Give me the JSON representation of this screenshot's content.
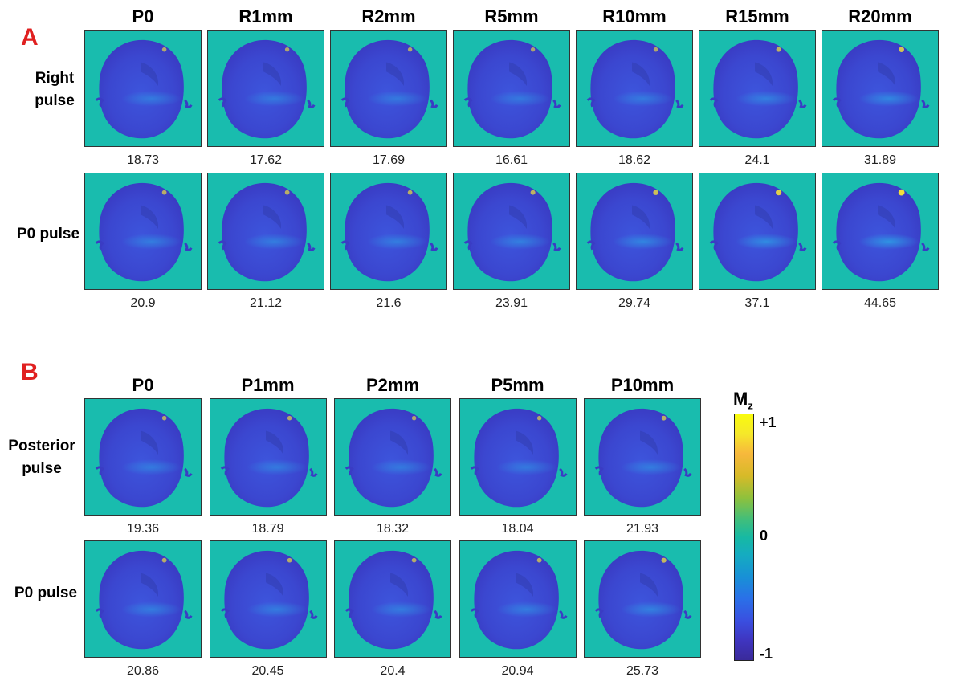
{
  "panel_a": {
    "letter": "A",
    "columns": [
      "P0",
      "R1mm",
      "R2mm",
      "R5mm",
      "R10mm",
      "R15mm",
      "R20mm"
    ],
    "row1_label": [
      "Right",
      "pulse"
    ],
    "row2_label": [
      "P0 pulse"
    ],
    "row1_values": [
      "18.73",
      "17.62",
      "17.69",
      "16.61",
      "18.62",
      "24.1",
      "31.89"
    ],
    "row2_values": [
      "20.9",
      "21.12",
      "21.6",
      "23.91",
      "29.74",
      "37.1",
      "44.65"
    ]
  },
  "panel_b": {
    "letter": "B",
    "columns": [
      "P0",
      "P1mm",
      "P2mm",
      "P5mm",
      "P10mm"
    ],
    "row1_label": [
      "Posterior",
      "pulse"
    ],
    "row2_label": [
      "P0 pulse"
    ],
    "row1_values": [
      "19.36",
      "18.79",
      "18.32",
      "18.04",
      "21.93"
    ],
    "row2_values": [
      "20.86",
      "20.45",
      "20.4",
      "20.94",
      "25.73"
    ]
  },
  "colorbar": {
    "title": "Mz",
    "title_main": "M",
    "title_sub": "z",
    "tick_top": "+1",
    "tick_mid": "0",
    "tick_bottom": "-1",
    "colormap": "parula",
    "range": [
      -1,
      1
    ]
  },
  "colors": {
    "panel_letter": "#e02020",
    "background_tile": "#19bcae",
    "brain_base": "#3f4fd6",
    "brain_highlight": "#2a8ee0",
    "hotspot": "#f5e23a"
  }
}
